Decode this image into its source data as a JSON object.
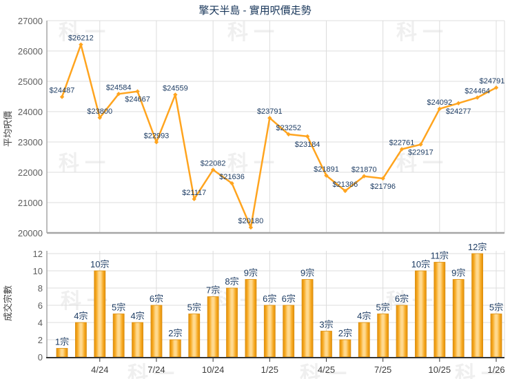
{
  "title": "擎天半島 - 實用呎價走勢",
  "watermark_text": "科一",
  "colors": {
    "line": "#FFA41E",
    "marker": "#FFA41E",
    "bar_edge": "#E2900E",
    "bar_mid": "#F6A81F",
    "bar_highlight": "#FFD98E",
    "bar_stroke": "#DA8E0D",
    "point_label": "#1E3D64",
    "bar_label": "#1E3D64",
    "title": "#163458",
    "tick": "#5E5E5E",
    "xtick": "#3C3C3C",
    "grid": "#DCDCDC",
    "axis_soft": "#A6A6A6",
    "axis_dark": "#333333",
    "axis_title": "#3F3F3F"
  },
  "chart_data": [
    {
      "type": "line",
      "title": "擎天半島 - 實用呎價走勢",
      "xlabel": "",
      "ylabel": "平均呎價",
      "ylim": [
        20000,
        27000
      ],
      "yticks": [
        20000,
        21000,
        22000,
        23000,
        24000,
        25000,
        26000,
        27000
      ],
      "grid": true,
      "legend": "none",
      "x_tick_labels": [
        "4/24",
        "7/24",
        "10/24",
        "1/25",
        "4/25",
        "7/25",
        "10/25",
        "1/26"
      ],
      "x_tick_point_indices": [
        2,
        5,
        8,
        11,
        14,
        17,
        20,
        23
      ],
      "values": [
        24487,
        26212,
        23800,
        24584,
        24667,
        22993,
        24559,
        21117,
        22082,
        21636,
        20180,
        23791,
        23252,
        23184,
        21891,
        21386,
        21870,
        21796,
        22761,
        22917,
        24092,
        24277,
        24464,
        24791
      ],
      "point_labels": [
        "$24487",
        "$26212",
        "$23800",
        "$24584",
        "$24667",
        "$22993",
        "$24559",
        "$21117",
        "$22082",
        "$21636",
        "$20180",
        "$23791",
        "$23252",
        "$23184",
        "$21891",
        "$21386",
        "$21870",
        "$21796",
        "$22761",
        "$22917",
        "$24092",
        "$24277",
        "$24464",
        "$24791"
      ],
      "label_position": [
        "above",
        "above",
        "above",
        "above",
        "below",
        "above",
        "above",
        "above",
        "above",
        "above",
        "above",
        "above",
        "above",
        "below",
        "above",
        "above",
        "above",
        "below",
        "above",
        "below",
        "above",
        "below",
        "above",
        "above"
      ]
    },
    {
      "type": "bar",
      "title": "",
      "xlabel": "",
      "ylabel": "成交宗數",
      "ylim": [
        0,
        12
      ],
      "yticks": [
        0,
        2,
        4,
        6,
        8,
        10,
        12
      ],
      "grid": true,
      "legend": "none",
      "x_tick_labels": [
        "4/24",
        "7/24",
        "10/24",
        "1/25",
        "4/25",
        "7/25",
        "10/25",
        "1/26"
      ],
      "x_tick_point_indices": [
        2,
        5,
        8,
        11,
        14,
        17,
        20,
        23
      ],
      "values": [
        1,
        4,
        10,
        5,
        4,
        6,
        2,
        5,
        7,
        8,
        9,
        6,
        6,
        9,
        3,
        2,
        4,
        5,
        6,
        10,
        11,
        9,
        12,
        5
      ],
      "bar_labels": [
        "1宗",
        "4宗",
        "10宗",
        "5宗",
        "4宗",
        "6宗",
        "2宗",
        "5宗",
        "7宗",
        "8宗",
        "9宗",
        "6宗",
        "6宗",
        "9宗",
        "3宗",
        "2宗",
        "4宗",
        "5宗",
        "6宗",
        "10宗",
        "11宗",
        "9宗",
        "12宗",
        "5宗"
      ]
    }
  ]
}
